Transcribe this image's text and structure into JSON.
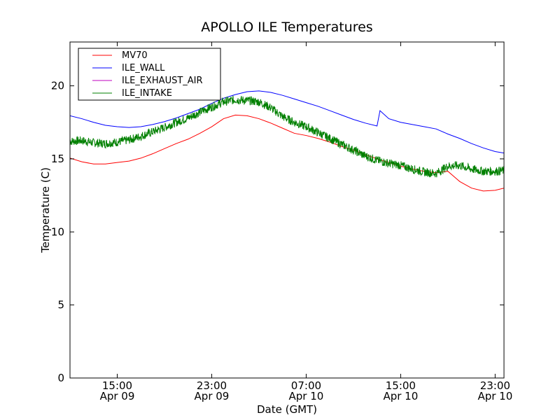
{
  "chart_data": {
    "type": "line",
    "title": "APOLLO ILE Temperatures",
    "xlabel": "Date (GMT)",
    "ylabel": "Temperature (C)",
    "x_unit": "datetime (GMT)",
    "xlim": [
      "2010-04-09 11:00",
      "2010-04-10 23:45"
    ],
    "ylim": [
      0,
      23
    ],
    "grid": false,
    "legend_placement": "upper-left",
    "yticks": [
      {
        "value": 0,
        "label": "0"
      },
      {
        "value": 5,
        "label": "5"
      },
      {
        "value": 10,
        "label": "10"
      },
      {
        "value": 15,
        "label": "15"
      },
      {
        "value": 20,
        "label": "20"
      }
    ],
    "xticks": [
      {
        "value": "2010-04-09 15:00",
        "label_time": "15:00",
        "label_date": "Apr 09"
      },
      {
        "value": "2010-04-09 23:00",
        "label_time": "23:00",
        "label_date": "Apr 09"
      },
      {
        "value": "2010-04-10 07:00",
        "label_time": "07:00",
        "label_date": "Apr 10"
      },
      {
        "value": "2010-04-10 15:00",
        "label_time": "15:00",
        "label_date": "Apr 10"
      },
      {
        "value": "2010-04-10 23:00",
        "label_time": "23:00",
        "label_date": "Apr 10"
      }
    ],
    "series": [
      {
        "name": "MV70",
        "color": "#ff0000",
        "points": [
          [
            "2010-04-09 11:00",
            15.05
          ],
          [
            "2010-04-09 12:00",
            14.8
          ],
          [
            "2010-04-09 13:00",
            14.65
          ],
          [
            "2010-04-09 14:00",
            14.65
          ],
          [
            "2010-04-09 15:00",
            14.75
          ],
          [
            "2010-04-09 16:00",
            14.85
          ],
          [
            "2010-04-09 17:00",
            15.05
          ],
          [
            "2010-04-09 18:00",
            15.35
          ],
          [
            "2010-04-09 19:00",
            15.7
          ],
          [
            "2010-04-09 20:00",
            16.05
          ],
          [
            "2010-04-09 21:00",
            16.35
          ],
          [
            "2010-04-09 22:00",
            16.75
          ],
          [
            "2010-04-09 23:00",
            17.2
          ],
          [
            "2010-04-10 00:00",
            17.75
          ],
          [
            "2010-04-10 01:00",
            18.0
          ],
          [
            "2010-04-10 02:00",
            17.95
          ],
          [
            "2010-04-10 03:00",
            17.75
          ],
          [
            "2010-04-10 04:00",
            17.45
          ],
          [
            "2010-04-10 05:00",
            17.1
          ],
          [
            "2010-04-10 06:00",
            16.75
          ],
          [
            "2010-04-10 07:00",
            16.6
          ],
          [
            "2010-04-10 08:00",
            16.4
          ],
          [
            "2010-04-10 09:00",
            16.15
          ],
          [
            "2010-04-10 10:00",
            15.85
          ],
          [
            "2010-04-10 11:00",
            15.6
          ],
          [
            "2010-04-10 12:00",
            15.3
          ],
          [
            "2010-04-10 13:00",
            15.0
          ],
          [
            "2010-04-10 14:00",
            14.75
          ],
          [
            "2010-04-10 15:00",
            14.5
          ],
          [
            "2010-04-10 16:00",
            14.3
          ],
          [
            "2010-04-10 17:00",
            14.15
          ],
          [
            "2010-04-10 18:00",
            14.05
          ],
          [
            "2010-04-10 19:00",
            14.15
          ],
          [
            "2010-04-10 20:00",
            13.45
          ],
          [
            "2010-04-10 21:00",
            13.0
          ],
          [
            "2010-04-10 22:00",
            12.8
          ],
          [
            "2010-04-10 23:00",
            12.85
          ],
          [
            "2010-04-10 23:45",
            13.0
          ]
        ]
      },
      {
        "name": "ILE_WALL",
        "color": "#0000ff",
        "points": [
          [
            "2010-04-09 11:00",
            17.95
          ],
          [
            "2010-04-09 12:00",
            17.75
          ],
          [
            "2010-04-09 13:00",
            17.5
          ],
          [
            "2010-04-09 14:00",
            17.3
          ],
          [
            "2010-04-09 15:00",
            17.2
          ],
          [
            "2010-04-09 16:00",
            17.15
          ],
          [
            "2010-04-09 17:00",
            17.2
          ],
          [
            "2010-04-09 18:00",
            17.35
          ],
          [
            "2010-04-09 19:00",
            17.55
          ],
          [
            "2010-04-09 20:00",
            17.8
          ],
          [
            "2010-04-09 21:00",
            18.1
          ],
          [
            "2010-04-09 22:00",
            18.4
          ],
          [
            "2010-04-09 23:00",
            18.8
          ],
          [
            "2010-04-10 00:00",
            19.15
          ],
          [
            "2010-04-10 01:00",
            19.4
          ],
          [
            "2010-04-10 02:00",
            19.6
          ],
          [
            "2010-04-10 03:00",
            19.65
          ],
          [
            "2010-04-10 04:00",
            19.55
          ],
          [
            "2010-04-10 05:00",
            19.35
          ],
          [
            "2010-04-10 06:00",
            19.1
          ],
          [
            "2010-04-10 07:00",
            18.85
          ],
          [
            "2010-04-10 08:00",
            18.6
          ],
          [
            "2010-04-10 09:00",
            18.3
          ],
          [
            "2010-04-10 10:00",
            18.0
          ],
          [
            "2010-04-10 11:00",
            17.7
          ],
          [
            "2010-04-10 12:00",
            17.45
          ],
          [
            "2010-04-10 13:00",
            17.25
          ],
          [
            "2010-04-10 13:15",
            18.3
          ],
          [
            "2010-04-10 14:00",
            17.75
          ],
          [
            "2010-04-10 15:00",
            17.5
          ],
          [
            "2010-04-10 16:00",
            17.35
          ],
          [
            "2010-04-10 17:00",
            17.2
          ],
          [
            "2010-04-10 18:00",
            17.05
          ],
          [
            "2010-04-10 19:00",
            16.7
          ],
          [
            "2010-04-10 20:00",
            16.4
          ],
          [
            "2010-04-10 21:00",
            16.05
          ],
          [
            "2010-04-10 22:00",
            15.75
          ],
          [
            "2010-04-10 23:00",
            15.5
          ],
          [
            "2010-04-10 23:45",
            15.4
          ]
        ]
      },
      {
        "name": "ILE_EXHAUST_AIR",
        "color": "#bf00bf",
        "points": []
      },
      {
        "name": "ILE_INTAKE",
        "color": "#008000",
        "noise_amplitude": 0.3,
        "points": [
          [
            "2010-04-09 11:00",
            16.2
          ],
          [
            "2010-04-09 12:00",
            16.25
          ],
          [
            "2010-04-09 13:00",
            16.1
          ],
          [
            "2010-04-09 14:00",
            16.05
          ],
          [
            "2010-04-09 15:00",
            16.15
          ],
          [
            "2010-04-09 16:00",
            16.3
          ],
          [
            "2010-04-09 17:00",
            16.55
          ],
          [
            "2010-04-09 18:00",
            16.85
          ],
          [
            "2010-04-09 19:00",
            17.15
          ],
          [
            "2010-04-09 20:00",
            17.5
          ],
          [
            "2010-04-09 21:00",
            17.8
          ],
          [
            "2010-04-09 22:00",
            18.2
          ],
          [
            "2010-04-09 23:00",
            18.55
          ],
          [
            "2010-04-10 00:00",
            18.9
          ],
          [
            "2010-04-10 01:00",
            19.05
          ],
          [
            "2010-04-10 02:00",
            19.0
          ],
          [
            "2010-04-10 03:00",
            18.9
          ],
          [
            "2010-04-10 04:00",
            18.5
          ],
          [
            "2010-04-10 05:00",
            17.9
          ],
          [
            "2010-04-10 06:00",
            17.5
          ],
          [
            "2010-04-10 07:00",
            17.2
          ],
          [
            "2010-04-10 08:00",
            16.8
          ],
          [
            "2010-04-10 09:00",
            16.4
          ],
          [
            "2010-04-10 10:00",
            16.0
          ],
          [
            "2010-04-10 11:00",
            15.6
          ],
          [
            "2010-04-10 12:00",
            15.2
          ],
          [
            "2010-04-10 13:00",
            14.9
          ],
          [
            "2010-04-10 14:00",
            14.7
          ],
          [
            "2010-04-10 15:00",
            14.55
          ],
          [
            "2010-04-10 16:00",
            14.3
          ],
          [
            "2010-04-10 17:00",
            14.1
          ],
          [
            "2010-04-10 18:00",
            14.0
          ],
          [
            "2010-04-10 19:00",
            14.5
          ],
          [
            "2010-04-10 20:00",
            14.55
          ],
          [
            "2010-04-10 21:00",
            14.3
          ],
          [
            "2010-04-10 22:00",
            14.15
          ],
          [
            "2010-04-10 23:00",
            14.15
          ],
          [
            "2010-04-10 23:45",
            14.2
          ]
        ]
      }
    ]
  }
}
